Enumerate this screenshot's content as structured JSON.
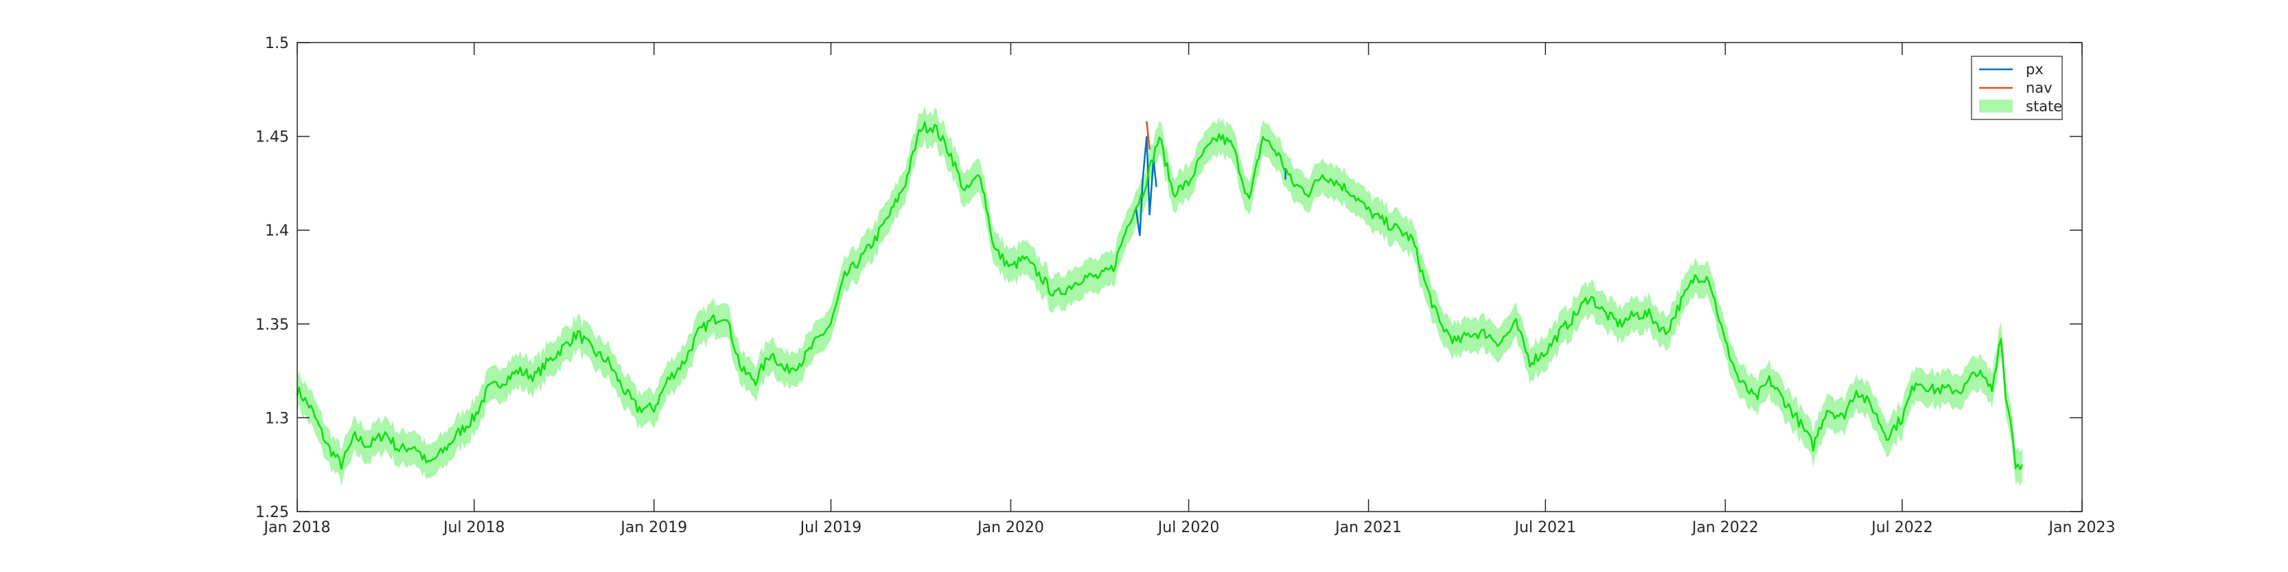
{
  "chart_data": {
    "type": "line",
    "title": "",
    "xlabel": "",
    "ylabel": "",
    "x_axis": {
      "type": "date",
      "range": [
        "2018-01-01",
        "2023-01-01"
      ],
      "ticks": [
        "2018-01-01",
        "2018-07-01",
        "2019-01-01",
        "2019-07-01",
        "2020-01-01",
        "2020-07-01",
        "2021-01-01",
        "2021-07-01",
        "2022-01-01",
        "2022-07-01",
        "2023-01-01"
      ],
      "tick_labels": [
        "Jan 2018",
        "Jul 2018",
        "Jan 2019",
        "Jul 2019",
        "Jan 2020",
        "Jul 2020",
        "Jan 2021",
        "Jul 2021",
        "Jan 2022",
        "Jul 2022",
        "Jan 2023"
      ]
    },
    "y_axis": {
      "range": [
        1.25,
        1.5
      ],
      "ticks": [
        1.25,
        1.3,
        1.35,
        1.4,
        1.45,
        1.5
      ],
      "tick_labels": [
        "1.25",
        "1.3",
        "1.35",
        "1.4",
        "1.45",
        "1.5"
      ]
    },
    "grid": false,
    "legend": {
      "position": "top-right",
      "entries": [
        {
          "label": "px",
          "color": "#0072BD",
          "kind": "line"
        },
        {
          "label": "nav",
          "color": "#D95319",
          "kind": "line"
        },
        {
          "label": "state",
          "color": "#aaf7aa",
          "kind": "patch"
        }
      ]
    },
    "series": [
      {
        "name": "px",
        "color": "#0072BD",
        "x": [
          "2020-05-08",
          "2020-05-12",
          "2020-05-15",
          "2020-05-19",
          "2020-05-22",
          "2020-05-26",
          "2020-05-29",
          "2020-10-08"
        ],
        "y": [
          1.412,
          1.397,
          1.427,
          1.45,
          1.408,
          1.438,
          1.423,
          1.433
        ]
      },
      {
        "name": "nav",
        "color": "#D95319",
        "x": [
          "2020-05-19",
          "2020-05-22"
        ],
        "y": [
          1.458,
          1.443
        ]
      },
      {
        "name": "state",
        "color": "#11e011",
        "band_color": "#aaf7aa",
        "band_halfwidth": 0.009,
        "x": [
          "2018-01-01",
          "2018-01-15",
          "2018-02-01",
          "2018-02-15",
          "2018-03-01",
          "2018-03-15",
          "2018-04-01",
          "2018-04-15",
          "2018-05-01",
          "2018-05-15",
          "2018-06-01",
          "2018-06-15",
          "2018-07-01",
          "2018-07-15",
          "2018-08-01",
          "2018-08-15",
          "2018-09-01",
          "2018-09-15",
          "2018-10-01",
          "2018-10-15",
          "2018-11-01",
          "2018-11-15",
          "2018-12-01",
          "2018-12-15",
          "2019-01-01",
          "2019-01-15",
          "2019-02-01",
          "2019-02-15",
          "2019-03-01",
          "2019-03-15",
          "2019-04-01",
          "2019-04-15",
          "2019-05-01",
          "2019-05-15",
          "2019-06-01",
          "2019-06-15",
          "2019-07-01",
          "2019-07-15",
          "2019-08-01",
          "2019-08-15",
          "2019-09-01",
          "2019-09-15",
          "2019-10-01",
          "2019-10-15",
          "2019-11-01",
          "2019-11-15",
          "2019-12-01",
          "2019-12-15",
          "2020-01-01",
          "2020-01-15",
          "2020-02-01",
          "2020-02-15",
          "2020-03-01",
          "2020-03-15",
          "2020-04-01",
          "2020-04-15",
          "2020-05-01",
          "2020-05-15",
          "2020-06-01",
          "2020-06-15",
          "2020-07-01",
          "2020-07-15",
          "2020-08-01",
          "2020-08-15",
          "2020-09-01",
          "2020-09-15",
          "2020-10-01",
          "2020-10-15",
          "2020-11-01",
          "2020-11-15",
          "2020-12-01",
          "2020-12-15",
          "2021-01-01",
          "2021-01-15",
          "2021-02-01",
          "2021-02-15",
          "2021-03-01",
          "2021-03-15",
          "2021-04-01",
          "2021-04-15",
          "2021-05-01",
          "2021-05-15",
          "2021-06-01",
          "2021-06-15",
          "2021-07-01",
          "2021-07-15",
          "2021-08-01",
          "2021-08-15",
          "2021-09-01",
          "2021-09-15",
          "2021-10-01",
          "2021-10-15",
          "2021-11-01",
          "2021-11-15",
          "2021-12-01",
          "2021-12-15",
          "2022-01-01",
          "2022-01-15",
          "2022-02-01",
          "2022-02-15",
          "2022-03-01",
          "2022-03-15",
          "2022-04-01",
          "2022-04-15",
          "2022-05-01",
          "2022-05-15",
          "2022-06-01",
          "2022-06-15",
          "2022-07-01",
          "2022-07-15",
          "2022-08-01",
          "2022-08-15",
          "2022-09-01",
          "2022-09-15",
          "2022-10-01",
          "2022-10-10",
          "2022-10-15",
          "2022-10-20",
          "2022-10-25",
          "2022-11-01"
        ],
        "y": [
          1.315,
          1.305,
          1.285,
          1.275,
          1.29,
          1.285,
          1.292,
          1.283,
          1.285,
          1.275,
          1.283,
          1.292,
          1.3,
          1.315,
          1.32,
          1.325,
          1.322,
          1.33,
          1.338,
          1.345,
          1.335,
          1.33,
          1.315,
          1.305,
          1.305,
          1.32,
          1.33,
          1.345,
          1.352,
          1.355,
          1.325,
          1.32,
          1.335,
          1.325,
          1.33,
          1.34,
          1.35,
          1.375,
          1.385,
          1.395,
          1.41,
          1.425,
          1.455,
          1.455,
          1.44,
          1.42,
          1.43,
          1.39,
          1.38,
          1.385,
          1.375,
          1.365,
          1.37,
          1.375,
          1.375,
          1.38,
          1.405,
          1.42,
          1.45,
          1.42,
          1.425,
          1.44,
          1.45,
          1.445,
          1.415,
          1.45,
          1.44,
          1.425,
          1.42,
          1.43,
          1.425,
          1.42,
          1.41,
          1.405,
          1.4,
          1.395,
          1.37,
          1.35,
          1.34,
          1.345,
          1.345,
          1.34,
          1.35,
          1.33,
          1.335,
          1.345,
          1.355,
          1.365,
          1.355,
          1.35,
          1.355,
          1.355,
          1.345,
          1.36,
          1.375,
          1.375,
          1.34,
          1.32,
          1.31,
          1.32,
          1.31,
          1.3,
          1.285,
          1.305,
          1.3,
          1.315,
          1.305,
          1.29,
          1.3,
          1.32,
          1.315,
          1.315,
          1.315,
          1.325,
          1.315,
          1.345,
          1.31,
          1.3,
          1.275,
          1.275
        ]
      }
    ]
  }
}
